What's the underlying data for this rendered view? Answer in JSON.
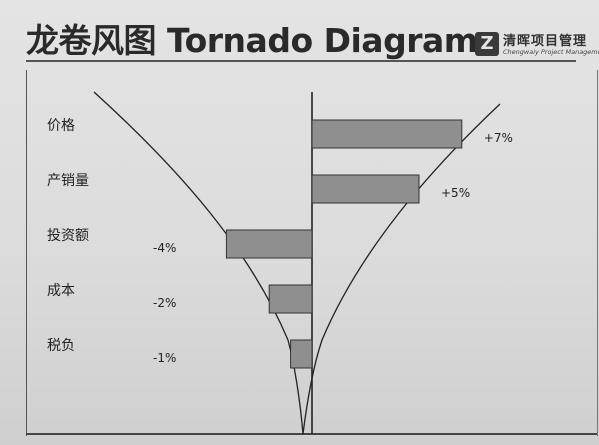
{
  "header": {
    "title": "龙卷风图 Tornado Diagram",
    "logo_mark": "Z",
    "logo_cn": "清晖项目管理",
    "logo_en": "Chengwaiy Project Management"
  },
  "chart_data": {
    "type": "bar",
    "orientation": "horizontal",
    "title": "龙卷风图 Tornado Diagram",
    "categories": [
      "价格",
      "产销量",
      "投资额",
      "成本",
      "税负"
    ],
    "values": [
      7,
      5,
      -4,
      -2,
      -1
    ],
    "value_labels": [
      "+7%",
      "+5%",
      "-4%",
      "-2%",
      "-1%"
    ],
    "xlim": [
      -4.4,
      7.2
    ],
    "unit": "%",
    "bar_color": "#8f8f8f",
    "funnel_curves": true
  }
}
